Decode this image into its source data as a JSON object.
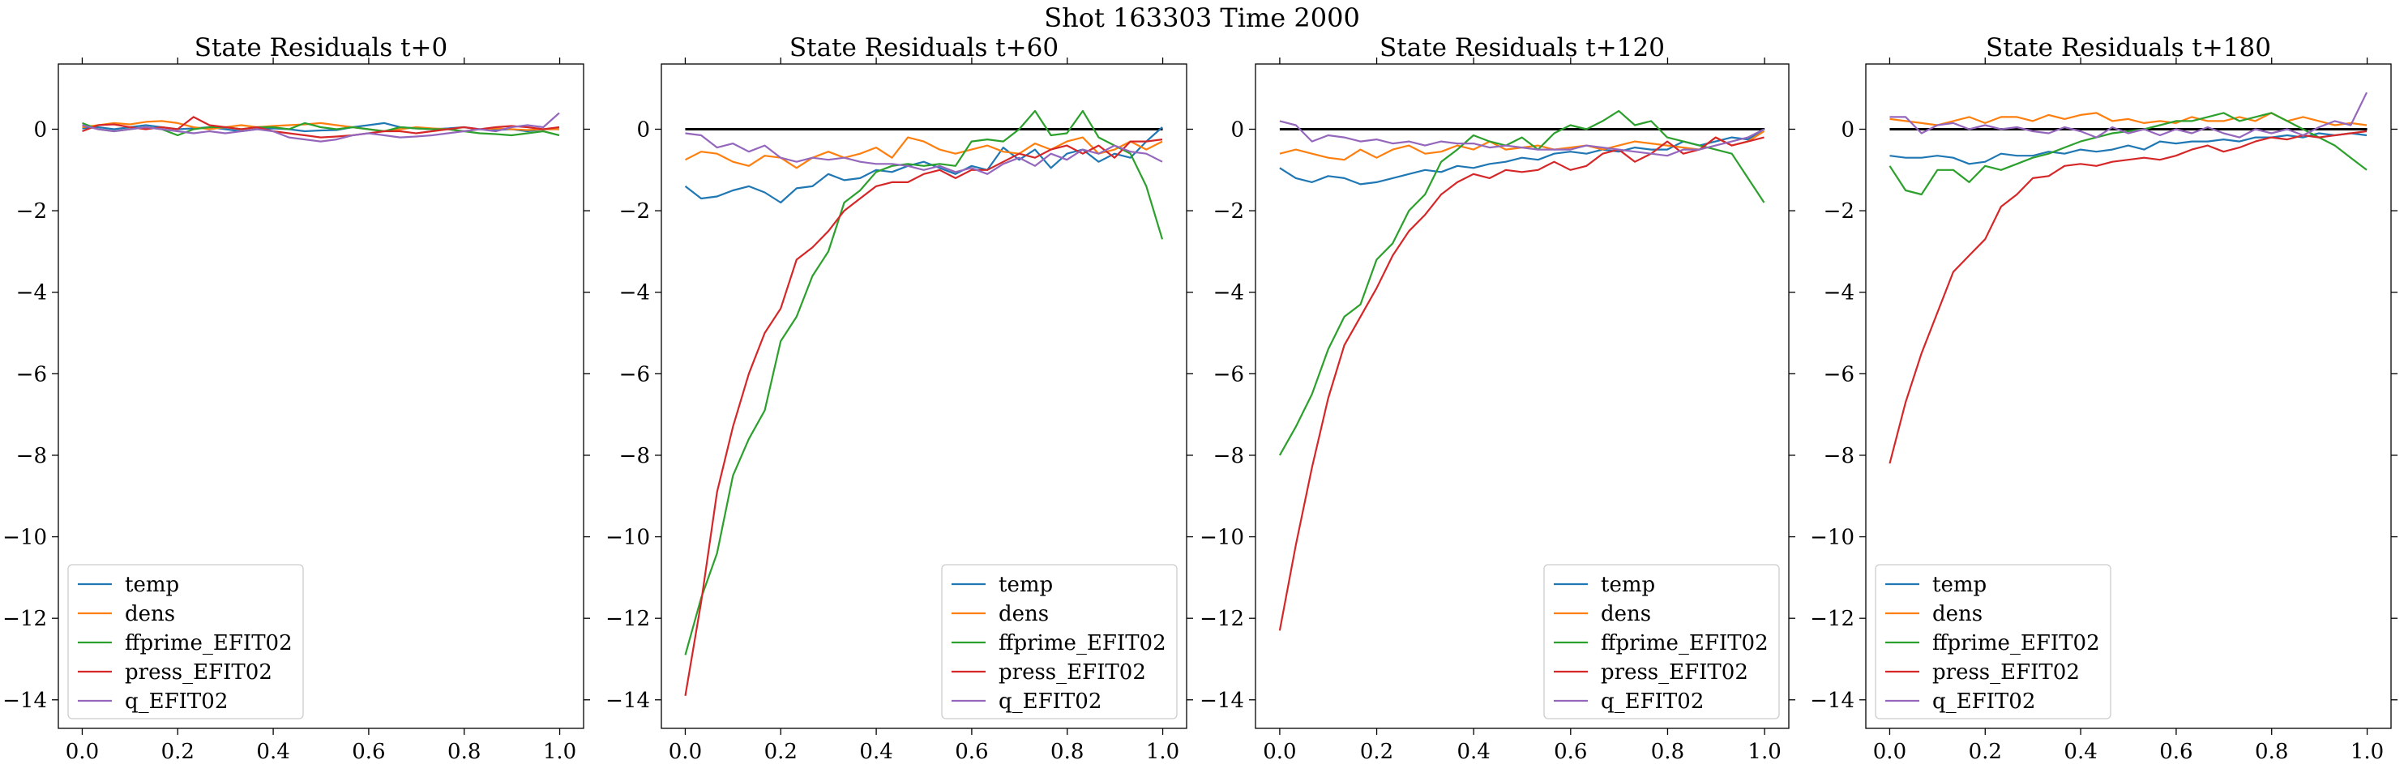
{
  "figure": {
    "suptitle": "Shot 163303   Time 2000"
  },
  "colors": {
    "temp": "#1f77b4",
    "dens": "#ff7f0e",
    "ffprime_EFIT02": "#2ca02c",
    "press_EFIT02": "#d62728",
    "q_EFIT02": "#9467bd",
    "zero_line": "#000000"
  },
  "chart_data": [
    {
      "type": "line",
      "title": "State Residuals t+0",
      "xlim": [
        -0.05,
        1.05
      ],
      "ylim": [
        -14.7,
        1.6
      ],
      "xticks": [
        "0.0",
        "0.2",
        "0.4",
        "0.6",
        "0.8",
        "1.0"
      ],
      "yticks": [
        "0",
        "−2",
        "−4",
        "−6",
        "−8",
        "−10",
        "−12",
        "−14"
      ],
      "legend_position": "lower-left",
      "zero_line": false,
      "x_start": 0.0,
      "x_step": 0.0333,
      "series": [
        {
          "name": "temp",
          "values": [
            0.02,
            0.05,
            0.0,
            0.05,
            0.1,
            0.05,
            0.0,
            0.02,
            0.05,
            0.0,
            -0.05,
            0.0,
            0.02,
            0.0,
            -0.05,
            -0.03,
            -0.02,
            0.05,
            0.1,
            0.15,
            0.05,
            0.02,
            0.0,
            0.02,
            0.05,
            0.0,
            -0.02,
            0.0,
            -0.05,
            0.0,
            0.0
          ]
        },
        {
          "name": "dens",
          "values": [
            0.05,
            0.1,
            0.15,
            0.12,
            0.18,
            0.2,
            0.15,
            0.05,
            0.0,
            0.05,
            0.1,
            0.05,
            0.08,
            0.1,
            0.12,
            0.15,
            0.1,
            0.05,
            0.0,
            -0.05,
            0.0,
            0.05,
            0.02,
            0.0,
            -0.05,
            0.0,
            0.02,
            0.0,
            -0.02,
            0.0,
            0.0
          ]
        },
        {
          "name": "ffprime_EFIT02",
          "values": [
            0.15,
            0.0,
            -0.05,
            0.0,
            0.05,
            0.0,
            -0.15,
            0.0,
            0.05,
            0.05,
            0.0,
            0.05,
            0.05,
            0.0,
            0.15,
            0.05,
            0.0,
            0.05,
            0.0,
            -0.05,
            0.05,
            0.02,
            0.0,
            0.0,
            -0.05,
            -0.1,
            -0.12,
            -0.15,
            -0.1,
            -0.05,
            -0.15
          ]
        },
        {
          "name": "press_EFIT02",
          "values": [
            -0.05,
            0.1,
            0.12,
            0.05,
            0.0,
            0.05,
            0.0,
            0.3,
            0.1,
            0.05,
            0.0,
            0.05,
            -0.05,
            -0.1,
            -0.15,
            -0.2,
            -0.18,
            -0.15,
            -0.1,
            -0.05,
            -0.05,
            -0.1,
            -0.05,
            0.0,
            0.05,
            0.0,
            0.05,
            0.08,
            0.05,
            0.0,
            0.05
          ]
        },
        {
          "name": "q_EFIT02",
          "values": [
            0.1,
            0.0,
            -0.05,
            0.0,
            0.05,
            0.0,
            -0.05,
            -0.1,
            -0.05,
            -0.1,
            -0.05,
            0.0,
            -0.05,
            -0.2,
            -0.25,
            -0.3,
            -0.25,
            -0.15,
            -0.1,
            -0.15,
            -0.2,
            -0.18,
            -0.15,
            -0.1,
            -0.05,
            0.0,
            -0.05,
            0.05,
            0.1,
            0.05,
            0.4
          ]
        }
      ]
    },
    {
      "type": "line",
      "title": "State Residuals t+60",
      "xlim": [
        -0.05,
        1.05
      ],
      "ylim": [
        -14.7,
        1.6
      ],
      "xticks": [
        "0.0",
        "0.2",
        "0.4",
        "0.6",
        "0.8",
        "1.0"
      ],
      "yticks": [
        "0",
        "−2",
        "−4",
        "−6",
        "−8",
        "−10",
        "−12",
        "−14"
      ],
      "legend_position": "lower-right",
      "zero_line": true,
      "x_start": 0.0,
      "x_step": 0.0333,
      "series": [
        {
          "name": "temp",
          "values": [
            -1.4,
            -1.7,
            -1.65,
            -1.5,
            -1.4,
            -1.55,
            -1.8,
            -1.45,
            -1.4,
            -1.1,
            -1.25,
            -1.2,
            -1.0,
            -1.05,
            -0.9,
            -0.8,
            -0.95,
            -1.1,
            -0.9,
            -1.0,
            -0.45,
            -0.75,
            -0.5,
            -0.95,
            -0.6,
            -0.5,
            -0.8,
            -0.6,
            -0.7,
            -0.3,
            0.05
          ]
        },
        {
          "name": "dens",
          "values": [
            -0.75,
            -0.55,
            -0.6,
            -0.8,
            -0.9,
            -0.65,
            -0.7,
            -0.95,
            -0.7,
            -0.55,
            -0.7,
            -0.6,
            -0.45,
            -0.7,
            -0.2,
            -0.3,
            -0.5,
            -0.6,
            -0.5,
            -0.4,
            -0.55,
            -0.6,
            -0.35,
            -0.5,
            -0.3,
            -0.2,
            -0.6,
            -0.5,
            -0.3,
            -0.5,
            -0.3
          ]
        },
        {
          "name": "ffprime_EFIT02",
          "values": [
            -12.9,
            -11.5,
            -10.4,
            -8.5,
            -7.6,
            -6.9,
            -5.2,
            -4.6,
            -3.6,
            -3.0,
            -1.8,
            -1.5,
            -1.05,
            -0.9,
            -0.85,
            -0.9,
            -0.85,
            -0.9,
            -0.3,
            -0.25,
            -0.3,
            0.0,
            0.45,
            -0.15,
            -0.1,
            0.45,
            -0.2,
            -0.4,
            -0.6,
            -1.4,
            -2.7
          ]
        },
        {
          "name": "press_EFIT02",
          "values": [
            -13.9,
            -11.6,
            -8.9,
            -7.3,
            -6.0,
            -5.0,
            -4.4,
            -3.2,
            -2.9,
            -2.5,
            -2.0,
            -1.7,
            -1.4,
            -1.3,
            -1.3,
            -1.1,
            -1.0,
            -1.2,
            -1.0,
            -1.0,
            -0.8,
            -0.6,
            -0.7,
            -0.5,
            -0.4,
            -0.6,
            -0.4,
            -0.7,
            -0.3,
            -0.3,
            -0.25
          ]
        },
        {
          "name": "q_EFIT02",
          "values": [
            -0.1,
            -0.15,
            -0.45,
            -0.35,
            -0.55,
            -0.4,
            -0.7,
            -0.8,
            -0.7,
            -0.75,
            -0.7,
            -0.8,
            -0.85,
            -0.85,
            -0.9,
            -1.0,
            -0.9,
            -1.05,
            -0.95,
            -1.1,
            -0.85,
            -0.7,
            -0.9,
            -0.6,
            -0.75,
            -0.5,
            -0.6,
            -0.4,
            -0.55,
            -0.6,
            -0.8
          ]
        }
      ]
    },
    {
      "type": "line",
      "title": "State Residuals t+120",
      "xlim": [
        -0.05,
        1.05
      ],
      "ylim": [
        -14.7,
        1.6
      ],
      "xticks": [
        "0.0",
        "0.2",
        "0.4",
        "0.6",
        "0.8",
        "1.0"
      ],
      "yticks": [
        "0",
        "−2",
        "−4",
        "−6",
        "−8",
        "−10",
        "−12",
        "−14"
      ],
      "legend_position": "lower-right",
      "zero_line": true,
      "x_start": 0.0,
      "x_step": 0.0333,
      "series": [
        {
          "name": "temp",
          "values": [
            -0.95,
            -1.2,
            -1.3,
            -1.15,
            -1.2,
            -1.35,
            -1.3,
            -1.2,
            -1.1,
            -1.0,
            -1.05,
            -0.9,
            -0.95,
            -0.85,
            -0.8,
            -0.7,
            -0.75,
            -0.6,
            -0.55,
            -0.6,
            -0.5,
            -0.55,
            -0.45,
            -0.5,
            -0.5,
            -0.3,
            -0.4,
            -0.3,
            -0.2,
            -0.25,
            0.0
          ]
        },
        {
          "name": "dens",
          "values": [
            -0.6,
            -0.5,
            -0.6,
            -0.7,
            -0.75,
            -0.5,
            -0.7,
            -0.5,
            -0.4,
            -0.6,
            -0.55,
            -0.4,
            -0.5,
            -0.3,
            -0.5,
            -0.45,
            -0.4,
            -0.5,
            -0.45,
            -0.4,
            -0.5,
            -0.4,
            -0.3,
            -0.35,
            -0.4,
            -0.45,
            -0.5,
            -0.2,
            -0.4,
            -0.3,
            -0.05
          ]
        },
        {
          "name": "ffprime_EFIT02",
          "values": [
            -8.0,
            -7.3,
            -6.5,
            -5.4,
            -4.6,
            -4.3,
            -3.2,
            -2.8,
            -2.0,
            -1.6,
            -0.8,
            -0.5,
            -0.15,
            -0.3,
            -0.4,
            -0.2,
            -0.5,
            -0.1,
            0.1,
            0.0,
            0.2,
            0.45,
            0.1,
            0.2,
            -0.2,
            -0.3,
            -0.4,
            -0.5,
            -0.6,
            -1.2,
            -1.8
          ]
        },
        {
          "name": "press_EFIT02",
          "values": [
            -12.3,
            -10.2,
            -8.3,
            -6.6,
            -5.3,
            -4.6,
            -3.9,
            -3.1,
            -2.5,
            -2.1,
            -1.6,
            -1.3,
            -1.1,
            -1.2,
            -1.0,
            -1.05,
            -1.0,
            -0.8,
            -1.0,
            -0.9,
            -0.6,
            -0.5,
            -0.8,
            -0.6,
            -0.3,
            -0.6,
            -0.5,
            -0.2,
            -0.4,
            -0.3,
            -0.2
          ]
        },
        {
          "name": "q_EFIT02",
          "values": [
            0.2,
            0.1,
            -0.3,
            -0.15,
            -0.2,
            -0.3,
            -0.25,
            -0.35,
            -0.3,
            -0.4,
            -0.3,
            -0.35,
            -0.35,
            -0.45,
            -0.4,
            -0.45,
            -0.5,
            -0.5,
            -0.5,
            -0.4,
            -0.45,
            -0.5,
            -0.55,
            -0.6,
            -0.65,
            -0.5,
            -0.5,
            -0.4,
            -0.3,
            -0.2,
            0.0
          ]
        }
      ]
    },
    {
      "type": "line",
      "title": "State Residuals t+180",
      "xlim": [
        -0.05,
        1.05
      ],
      "ylim": [
        -14.7,
        1.6
      ],
      "xticks": [
        "0.0",
        "0.2",
        "0.4",
        "0.6",
        "0.8",
        "1.0"
      ],
      "yticks": [
        "0",
        "−2",
        "−4",
        "−6",
        "−8",
        "−10",
        "−12",
        "−14"
      ],
      "legend_position": "lower-left",
      "zero_line": true,
      "x_start": 0.0,
      "x_step": 0.0333,
      "series": [
        {
          "name": "temp",
          "values": [
            -0.65,
            -0.7,
            -0.7,
            -0.65,
            -0.7,
            -0.85,
            -0.8,
            -0.6,
            -0.65,
            -0.65,
            -0.55,
            -0.6,
            -0.5,
            -0.55,
            -0.5,
            -0.4,
            -0.5,
            -0.3,
            -0.35,
            -0.3,
            -0.3,
            -0.25,
            -0.3,
            -0.2,
            -0.2,
            -0.15,
            -0.2,
            -0.1,
            -0.15,
            -0.1,
            -0.15
          ]
        },
        {
          "name": "dens",
          "values": [
            0.25,
            0.2,
            0.15,
            0.1,
            0.2,
            0.3,
            0.15,
            0.3,
            0.3,
            0.2,
            0.35,
            0.25,
            0.35,
            0.4,
            0.2,
            0.25,
            0.15,
            0.2,
            0.15,
            0.3,
            0.2,
            0.2,
            0.3,
            0.2,
            0.4,
            0.2,
            0.3,
            0.2,
            0.1,
            0.15,
            0.1
          ]
        },
        {
          "name": "ffprime_EFIT02",
          "values": [
            -0.9,
            -1.5,
            -1.6,
            -1.0,
            -1.0,
            -1.3,
            -0.9,
            -1.0,
            -0.85,
            -0.7,
            -0.6,
            -0.45,
            -0.3,
            -0.2,
            -0.1,
            -0.05,
            0.0,
            0.1,
            0.2,
            0.2,
            0.3,
            0.4,
            0.2,
            0.3,
            0.4,
            0.2,
            0.0,
            -0.2,
            -0.4,
            -0.7,
            -1.0
          ]
        },
        {
          "name": "press_EFIT02",
          "values": [
            -8.2,
            -6.7,
            -5.5,
            -4.5,
            -3.5,
            -3.1,
            -2.7,
            -1.9,
            -1.6,
            -1.2,
            -1.15,
            -0.9,
            -0.85,
            -0.9,
            -0.8,
            -0.75,
            -0.7,
            -0.75,
            -0.65,
            -0.5,
            -0.4,
            -0.55,
            -0.45,
            -0.3,
            -0.2,
            -0.25,
            -0.15,
            -0.2,
            -0.15,
            -0.1,
            -0.05
          ]
        },
        {
          "name": "q_EFIT02",
          "values": [
            0.3,
            0.3,
            -0.1,
            0.1,
            0.15,
            0.0,
            0.1,
            0.0,
            0.05,
            -0.05,
            -0.1,
            0.05,
            -0.05,
            -0.2,
            0.05,
            -0.1,
            0.0,
            -0.15,
            0.0,
            -0.1,
            0.05,
            -0.1,
            -0.2,
            0.0,
            -0.1,
            0.0,
            -0.15,
            0.05,
            0.2,
            0.1,
            0.9
          ]
        }
      ]
    }
  ]
}
